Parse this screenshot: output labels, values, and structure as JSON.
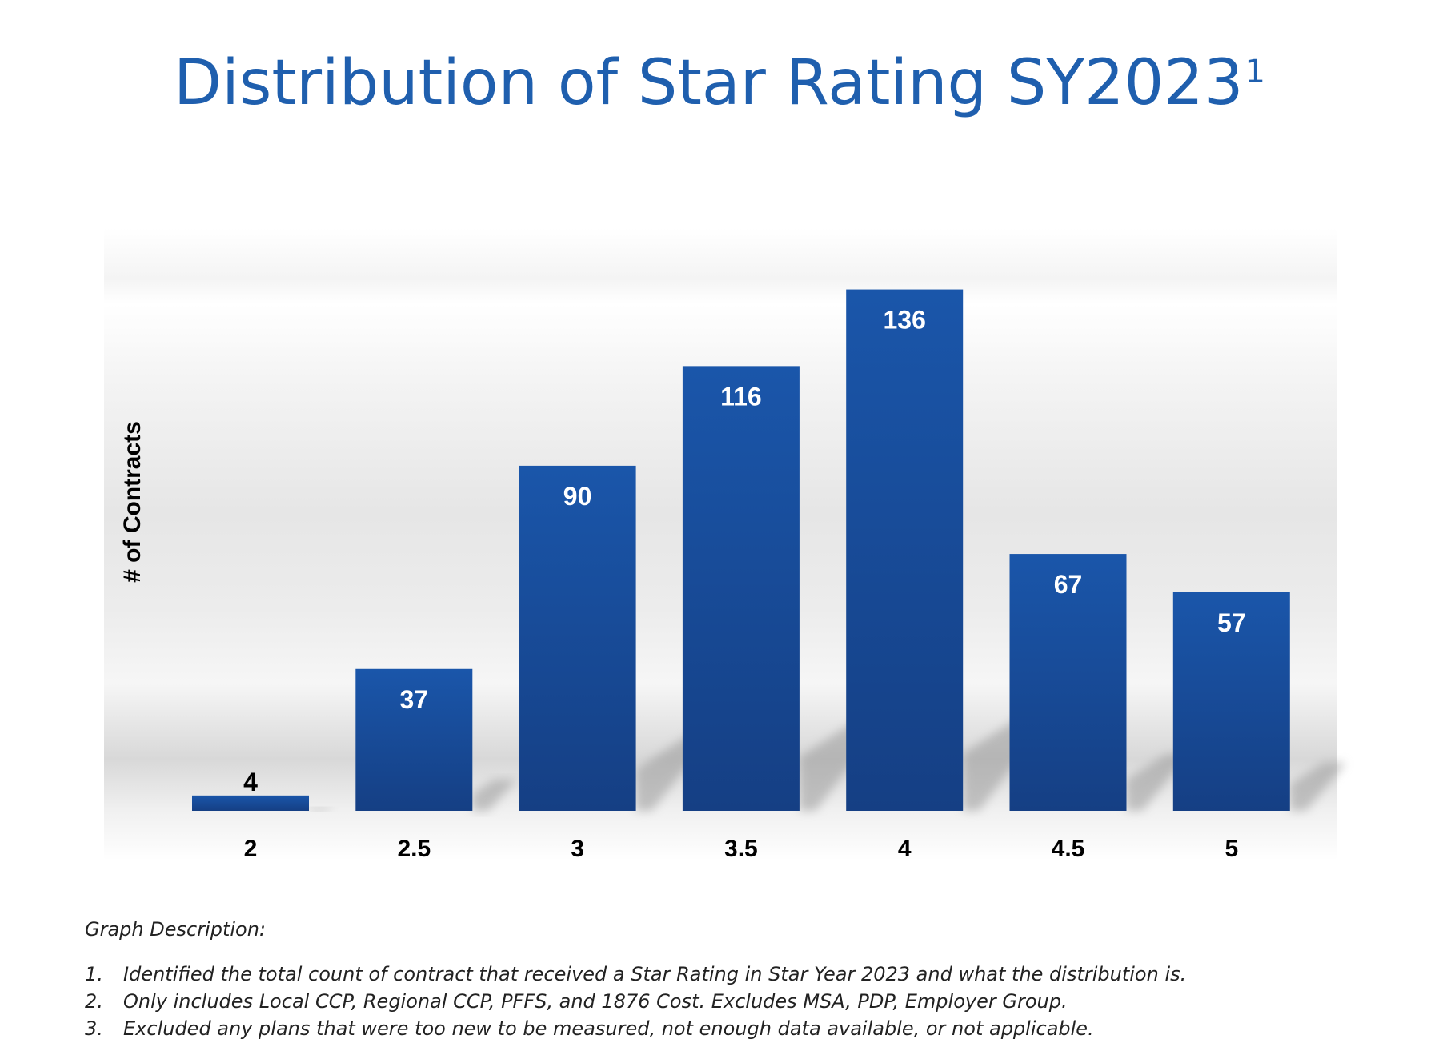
{
  "title": "Distribution of Star Rating SY2023",
  "title_superscript": "1",
  "chart_data": {
    "type": "bar",
    "title": "Distribution of Star Rating SY2023",
    "xlabel": "",
    "ylabel": "# of Contracts",
    "categories": [
      "2",
      "2.5",
      "3",
      "3.5",
      "4",
      "4.5",
      "5"
    ],
    "values": [
      4,
      37,
      90,
      116,
      136,
      67,
      57
    ],
    "ylim": [
      0,
      140
    ],
    "grid": false,
    "legend": "none",
    "bar_color": "#1a55a8",
    "bar_color_dark": "#143f86"
  },
  "description": {
    "heading": "Graph Description:",
    "items": [
      {
        "num": "1.",
        "text": "Identified the total count of contract that received a Star Rating in Star Year 2023 and what the distribution is."
      },
      {
        "num": "2.",
        "text": "Only includes Local CCP, Regional CCP, PFFS, and 1876 Cost. Excludes MSA, PDP, Employer Group."
      },
      {
        "num": "3.",
        "text": "Excluded any plans that were too new to be measured, not enough data available, or not applicable."
      }
    ]
  }
}
